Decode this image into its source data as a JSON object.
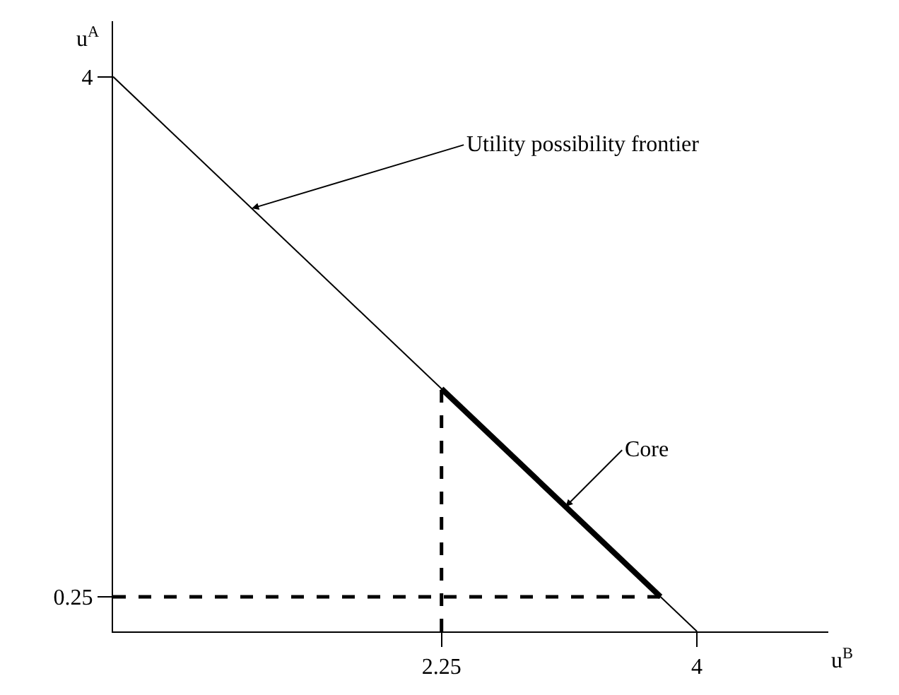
{
  "chart_data": {
    "type": "line",
    "xlabel": "u$^{B}$",
    "ylabel": "u$^{A}$",
    "xlim": [
      0,
      4.9
    ],
    "ylim": [
      0,
      4.4
    ],
    "xticks": [
      2.25,
      4
    ],
    "yticks": [
      0.25,
      4
    ],
    "marker": "none",
    "series": [
      {
        "x": [
          0,
          4
        ],
        "values": [
          4,
          0
        ],
        "color": "#000000",
        "line_style": "solid"
      },
      {
        "x": [
          2.25,
          3.75
        ],
        "values": [
          1.75,
          0.25
        ],
        "color": "#000000",
        "line_style": "solid"
      },
      {
        "x": [
          2.25,
          2.25
        ],
        "values": [
          0,
          1.75
        ],
        "color": "#000000",
        "line_style": "dashed"
      },
      {
        "x": [
          0,
          3.75
        ],
        "values": [
          0.25,
          0.25
        ],
        "color": "#000000",
        "line_style": "dashed"
      }
    ],
    "annotations": [
      {
        "text": "Utility possibility frontier",
        "x": 0.95,
        "y": 3.05
      },
      {
        "text": "Core",
        "x": 3.1,
        "y": 0.9
      }
    ]
  }
}
